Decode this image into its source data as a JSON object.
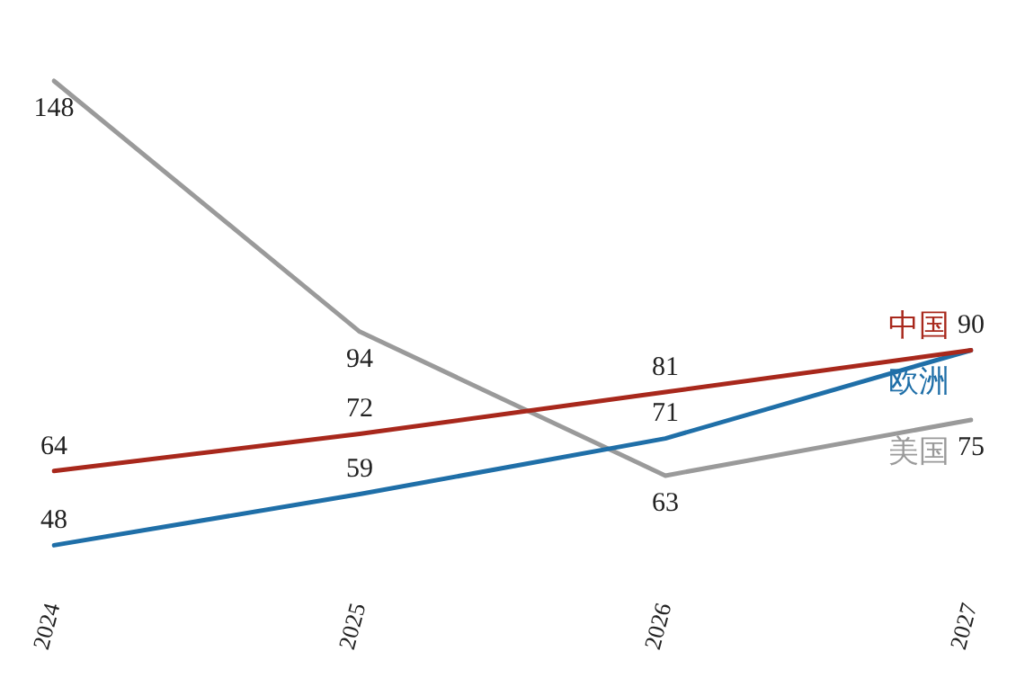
{
  "chart_data": {
    "type": "line",
    "categories": [
      "2024",
      "2025",
      "2026",
      "2027"
    ],
    "series": [
      {
        "name": "中国",
        "color": "#a8281c",
        "values": [
          64,
          72,
          81,
          90
        ],
        "value_labels": [
          "64",
          "72",
          "81",
          "90"
        ]
      },
      {
        "name": "欧洲",
        "color": "#1f6fa8",
        "values": [
          48,
          59,
          71,
          90
        ],
        "value_labels": [
          "48",
          "59",
          "71",
          null
        ]
      },
      {
        "name": "美国",
        "color": "#9a9a9a",
        "values": [
          148,
          94,
          63,
          75
        ],
        "value_labels": [
          "148",
          "94",
          "63",
          "75"
        ]
      }
    ],
    "grid": false,
    "legend": false,
    "marker": "none",
    "line_style": "solid",
    "tick_labels": "x"
  }
}
